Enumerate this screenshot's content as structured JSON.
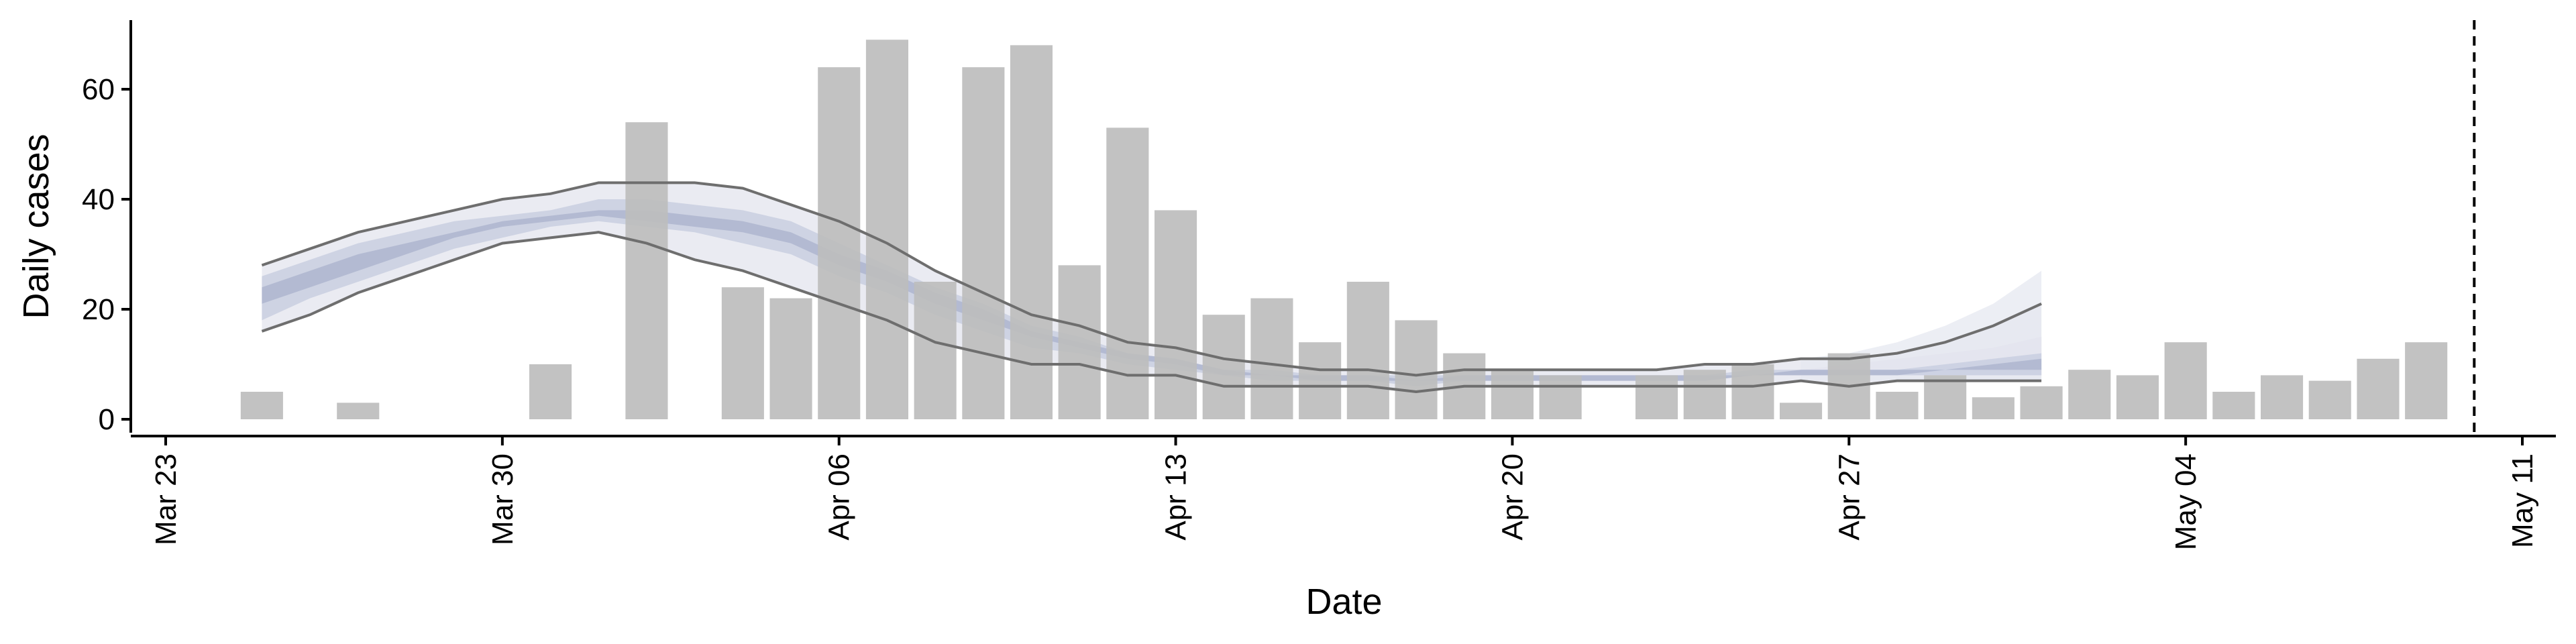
{
  "chart_data": {
    "type": "bar",
    "xlabel": "Date",
    "ylabel": "Daily cases",
    "ylim": [
      0,
      72
    ],
    "xlim": [
      "2020-03-23",
      "2020-05-11"
    ],
    "y_ticks": [
      0,
      20,
      40,
      60
    ],
    "x_ticks": [
      {
        "date": "2020-03-23",
        "label": "Mar 23"
      },
      {
        "date": "2020-03-30",
        "label": "Mar 30"
      },
      {
        "date": "2020-04-06",
        "label": "Apr 06"
      },
      {
        "date": "2020-04-13",
        "label": "Apr 13"
      },
      {
        "date": "2020-04-20",
        "label": "Apr 20"
      },
      {
        "date": "2020-04-27",
        "label": "Apr 27"
      },
      {
        "date": "2020-05-04",
        "label": "May 04"
      },
      {
        "date": "2020-05-11",
        "label": "May 11"
      }
    ],
    "grid": false,
    "bars": {
      "color": "#bdbdbd",
      "points": [
        {
          "date": "2020-03-25",
          "value": 5
        },
        {
          "date": "2020-03-27",
          "value": 3
        },
        {
          "date": "2020-03-31",
          "value": 10
        },
        {
          "date": "2020-04-02",
          "value": 54
        },
        {
          "date": "2020-04-04",
          "value": 24
        },
        {
          "date": "2020-04-05",
          "value": 22
        },
        {
          "date": "2020-04-06",
          "value": 64
        },
        {
          "date": "2020-04-07",
          "value": 69
        },
        {
          "date": "2020-04-08",
          "value": 25
        },
        {
          "date": "2020-04-09",
          "value": 64
        },
        {
          "date": "2020-04-10",
          "value": 68
        },
        {
          "date": "2020-04-11",
          "value": 28
        },
        {
          "date": "2020-04-12",
          "value": 53
        },
        {
          "date": "2020-04-13",
          "value": 38
        },
        {
          "date": "2020-04-14",
          "value": 19
        },
        {
          "date": "2020-04-15",
          "value": 22
        },
        {
          "date": "2020-04-16",
          "value": 14
        },
        {
          "date": "2020-04-17",
          "value": 25
        },
        {
          "date": "2020-04-18",
          "value": 18
        },
        {
          "date": "2020-04-19",
          "value": 12
        },
        {
          "date": "2020-04-20",
          "value": 9
        },
        {
          "date": "2020-04-21",
          "value": 8
        },
        {
          "date": "2020-04-23",
          "value": 8
        },
        {
          "date": "2020-04-24",
          "value": 9
        },
        {
          "date": "2020-04-25",
          "value": 10
        },
        {
          "date": "2020-04-26",
          "value": 3
        },
        {
          "date": "2020-04-27",
          "value": 12
        },
        {
          "date": "2020-04-28",
          "value": 5
        },
        {
          "date": "2020-04-29",
          "value": 8
        },
        {
          "date": "2020-04-30",
          "value": 4
        },
        {
          "date": "2020-05-01",
          "value": 6
        },
        {
          "date": "2020-05-02",
          "value": 9
        },
        {
          "date": "2020-05-03",
          "value": 8
        },
        {
          "date": "2020-05-04",
          "value": 14
        },
        {
          "date": "2020-05-05",
          "value": 5
        },
        {
          "date": "2020-05-06",
          "value": 8
        },
        {
          "date": "2020-05-07",
          "value": 7
        },
        {
          "date": "2020-05-08",
          "value": 11
        },
        {
          "date": "2020-05-09",
          "value": 14
        }
      ]
    },
    "bands": {
      "dates": [
        "2020-03-25",
        "2020-03-26",
        "2020-03-27",
        "2020-03-28",
        "2020-03-29",
        "2020-03-30",
        "2020-03-31",
        "2020-04-01",
        "2020-04-02",
        "2020-04-03",
        "2020-04-04",
        "2020-04-05",
        "2020-04-06",
        "2020-04-07",
        "2020-04-08",
        "2020-04-09",
        "2020-04-10",
        "2020-04-11",
        "2020-04-12",
        "2020-04-13",
        "2020-04-14",
        "2020-04-15",
        "2020-04-16",
        "2020-04-17",
        "2020-04-18",
        "2020-04-19",
        "2020-04-20",
        "2020-04-21",
        "2020-04-22",
        "2020-04-23",
        "2020-04-24",
        "2020-04-25",
        "2020-04-26",
        "2020-04-27",
        "2020-04-28",
        "2020-04-29",
        "2020-04-30",
        "2020-05-01"
      ],
      "outer_lower": [
        16,
        19,
        23,
        26,
        29,
        32,
        33,
        34,
        32,
        29,
        27,
        24,
        21,
        18,
        14,
        12,
        10,
        10,
        8,
        8,
        6,
        6,
        6,
        6,
        5,
        6,
        6,
        6,
        6,
        6,
        6,
        6,
        7,
        6,
        7,
        7,
        7,
        7
      ],
      "outer_upper": [
        28,
        31,
        34,
        36,
        38,
        40,
        41,
        43,
        43,
        43,
        42,
        39,
        36,
        32,
        27,
        23,
        19,
        17,
        14,
        13,
        11,
        10,
        9,
        9,
        8,
        9,
        9,
        9,
        9,
        9,
        10,
        10,
        11,
        11,
        12,
        14,
        17,
        21
      ],
      "mid_lower": [
        18,
        22,
        25,
        28,
        31,
        33,
        35,
        36,
        35,
        34,
        32,
        30,
        26,
        23,
        19,
        16,
        13,
        12,
        10,
        9,
        8,
        7,
        7,
        7,
        6,
        7,
        7,
        7,
        7,
        7,
        7,
        8,
        8,
        8,
        8,
        8,
        8,
        8
      ],
      "mid_upper": [
        26,
        29,
        32,
        34,
        36,
        37,
        38,
        40,
        40,
        39,
        38,
        36,
        32,
        28,
        24,
        21,
        17,
        15,
        12,
        11,
        9,
        9,
        8,
        8,
        8,
        8,
        8,
        8,
        8,
        8,
        8,
        9,
        9,
        9,
        9,
        10,
        11,
        12
      ],
      "inner_lower": [
        21,
        24,
        27,
        30,
        33,
        35,
        36,
        37,
        36,
        35,
        34,
        32,
        28,
        25,
        21,
        18,
        15,
        13,
        11,
        10,
        8,
        8,
        7,
        7,
        7,
        7,
        7,
        7,
        7,
        7,
        7,
        8,
        8,
        8,
        8,
        9,
        9,
        9
      ],
      "inner_upper": [
        24,
        27,
        30,
        32,
        34,
        36,
        37,
        38,
        38,
        37,
        36,
        34,
        30,
        27,
        23,
        20,
        16,
        14,
        12,
        11,
        9,
        8,
        8,
        8,
        7,
        8,
        8,
        8,
        8,
        8,
        8,
        8,
        9,
        9,
        9,
        9,
        10,
        11
      ],
      "forecast_outer_dates": [
        "2020-04-26",
        "2020-04-27",
        "2020-04-28",
        "2020-04-29",
        "2020-04-30",
        "2020-05-01"
      ],
      "forecast_outer_lower": [
        7,
        7,
        7,
        7,
        7,
        7
      ],
      "forecast_outer_upper": [
        11,
        12,
        14,
        17,
        21,
        27
      ],
      "forecast_mid_lower": [
        8,
        8,
        8,
        8,
        8,
        8
      ],
      "forecast_mid_upper": [
        9,
        10,
        11,
        12,
        13,
        15
      ],
      "outer_color": "#e6e8f0",
      "mid_color": "#c9cfe0",
      "inner_color": "#a9b2cc",
      "line_color": "#6e6e6e"
    },
    "vline": {
      "date": "2020-05-10",
      "style": "dashed"
    }
  }
}
